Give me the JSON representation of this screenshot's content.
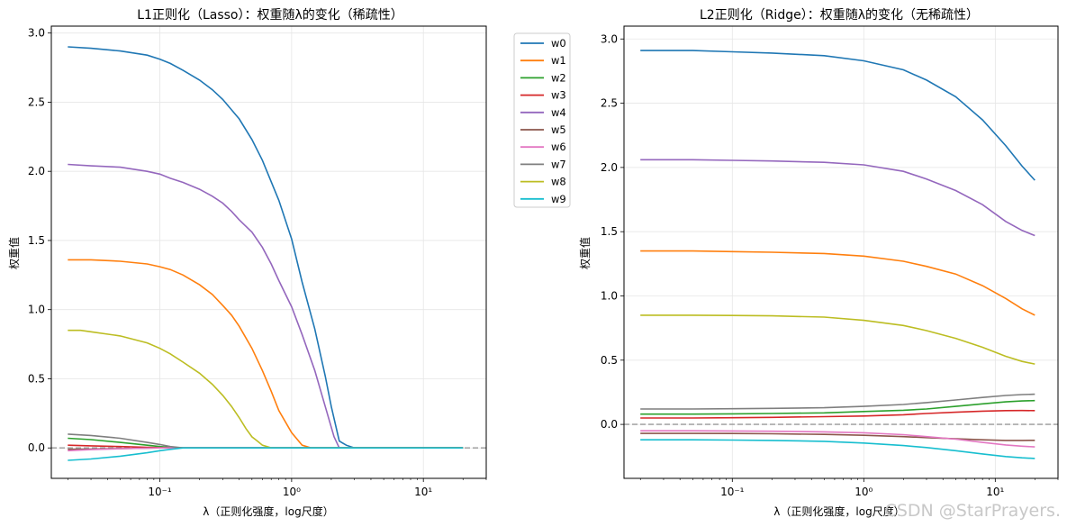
{
  "colors": [
    "#1f77b4",
    "#ff7f0e",
    "#2ca02c",
    "#d62728",
    "#9467bd",
    "#8c564b",
    "#e377c2",
    "#7f7f7f",
    "#bcbd22",
    "#17becf"
  ],
  "watermark": "CSDN @StarPrayers.",
  "chart_data": [
    {
      "type": "line",
      "title": "L1正则化（Lasso）：权重随λ的变化（稀疏性）",
      "xlabel": "λ（正则化强度，log尺度）",
      "ylabel": "权重值",
      "xscale": "log",
      "xlim": [
        0.015,
        30
      ],
      "ylim": [
        -0.22,
        3.05
      ],
      "xticks": [
        0.1,
        1,
        10
      ],
      "xtick_labels": [
        "10⁻¹",
        "10⁰",
        "10¹"
      ],
      "yticks": [
        0.0,
        0.5,
        1.0,
        1.5,
        2.0,
        2.5,
        3.0
      ],
      "ytick_labels": [
        "0.0",
        "0.5",
        "1.0",
        "1.5",
        "2.0",
        "2.5",
        "3.0"
      ],
      "grid": true,
      "hline": 0,
      "legend": "outside-right",
      "series": [
        {
          "name": "w0",
          "x": [
            0.02,
            0.03,
            0.05,
            0.08,
            0.1,
            0.12,
            0.15,
            0.2,
            0.25,
            0.3,
            0.4,
            0.5,
            0.6,
            0.8,
            1.0,
            1.2,
            1.5,
            1.8,
            2.0,
            2.3,
            2.6,
            3.0,
            5,
            10,
            20
          ],
          "y": [
            2.9,
            2.89,
            2.87,
            2.84,
            2.81,
            2.78,
            2.73,
            2.66,
            2.59,
            2.52,
            2.38,
            2.23,
            2.08,
            1.79,
            1.51,
            1.2,
            0.86,
            0.52,
            0.3,
            0.05,
            0.02,
            0.0,
            0.0,
            0.0,
            0.0
          ]
        },
        {
          "name": "w1",
          "x": [
            0.02,
            0.03,
            0.05,
            0.08,
            0.1,
            0.12,
            0.15,
            0.2,
            0.25,
            0.3,
            0.35,
            0.4,
            0.5,
            0.6,
            0.7,
            0.8,
            1.0,
            1.2,
            1.4,
            2,
            5,
            10,
            20
          ],
          "y": [
            1.36,
            1.36,
            1.35,
            1.33,
            1.31,
            1.29,
            1.25,
            1.18,
            1.11,
            1.03,
            0.96,
            0.88,
            0.72,
            0.56,
            0.41,
            0.27,
            0.11,
            0.02,
            0.0,
            0.0,
            0.0,
            0.0,
            0.0
          ]
        },
        {
          "name": "w2",
          "x": [
            0.02,
            0.03,
            0.05,
            0.08,
            0.1,
            0.12,
            0.15,
            0.2,
            1,
            10,
            20
          ],
          "y": [
            0.07,
            0.06,
            0.04,
            0.02,
            0.01,
            0.005,
            0.0,
            0.0,
            0.0,
            0.0,
            0.0
          ]
        },
        {
          "name": "w3",
          "x": [
            0.02,
            0.03,
            0.05,
            0.08,
            0.1,
            0.12,
            0.15,
            1,
            10,
            20
          ],
          "y": [
            0.02,
            0.015,
            0.01,
            0.005,
            0.002,
            0.0,
            0.0,
            0.0,
            0.0,
            0.0
          ]
        },
        {
          "name": "w4",
          "x": [
            0.02,
            0.03,
            0.05,
            0.08,
            0.1,
            0.12,
            0.15,
            0.2,
            0.25,
            0.3,
            0.35,
            0.4,
            0.5,
            0.6,
            0.7,
            0.8,
            1.0,
            1.2,
            1.5,
            1.8,
            2.1,
            2.3,
            5,
            10,
            20
          ],
          "y": [
            2.05,
            2.04,
            2.03,
            2.0,
            1.98,
            1.95,
            1.92,
            1.87,
            1.82,
            1.77,
            1.71,
            1.65,
            1.56,
            1.45,
            1.33,
            1.21,
            1.02,
            0.82,
            0.56,
            0.3,
            0.08,
            0.0,
            0.0,
            0.0,
            0.0
          ]
        },
        {
          "name": "w5",
          "x": [
            0.02,
            0.03,
            0.05,
            0.08,
            0.1,
            0.12,
            1,
            10,
            20
          ],
          "y": [
            -0.01,
            -0.008,
            -0.005,
            -0.002,
            0.0,
            0.0,
            0.0,
            0.0,
            0.0
          ]
        },
        {
          "name": "w6",
          "x": [
            0.02,
            0.03,
            0.05,
            0.08,
            0.1,
            1,
            10,
            20
          ],
          "y": [
            -0.02,
            -0.012,
            -0.006,
            -0.002,
            0.0,
            0.0,
            0.0,
            0.0
          ]
        },
        {
          "name": "w7",
          "x": [
            0.02,
            0.03,
            0.05,
            0.08,
            0.1,
            0.12,
            0.15,
            1,
            10,
            20
          ],
          "y": [
            0.1,
            0.09,
            0.07,
            0.04,
            0.025,
            0.01,
            0.0,
            0.0,
            0.0,
            0.0
          ]
        },
        {
          "name": "w8",
          "x": [
            0.02,
            0.025,
            0.03,
            0.05,
            0.08,
            0.1,
            0.12,
            0.15,
            0.2,
            0.25,
            0.3,
            0.35,
            0.4,
            0.45,
            0.5,
            0.55,
            0.6,
            0.7,
            1,
            10,
            20
          ],
          "y": [
            0.85,
            0.85,
            0.84,
            0.81,
            0.76,
            0.72,
            0.68,
            0.62,
            0.54,
            0.46,
            0.38,
            0.3,
            0.22,
            0.14,
            0.08,
            0.05,
            0.02,
            0.0,
            0.0,
            0.0,
            0.0
          ]
        },
        {
          "name": "w9",
          "x": [
            0.02,
            0.03,
            0.05,
            0.08,
            0.1,
            0.12,
            0.15,
            1,
            10,
            20
          ],
          "y": [
            -0.09,
            -0.08,
            -0.06,
            -0.035,
            -0.02,
            -0.01,
            0.0,
            0.0,
            0.0,
            0.0
          ]
        }
      ]
    },
    {
      "type": "line",
      "title": "L2正则化（Ridge）：权重随λ的变化（无稀疏性）",
      "xlabel": "λ（正则化强度，log尺度）",
      "ylabel": "权重值",
      "xscale": "log",
      "xlim": [
        0.015,
        30
      ],
      "ylim": [
        -0.42,
        3.1
      ],
      "xticks": [
        0.1,
        1,
        10
      ],
      "xtick_labels": [
        "10⁻¹",
        "10⁰",
        "10¹"
      ],
      "yticks": [
        0.0,
        0.5,
        1.0,
        1.5,
        2.0,
        2.5,
        3.0
      ],
      "ytick_labels": [
        "0.0",
        "0.5",
        "1.0",
        "1.5",
        "2.0",
        "2.5",
        "3.0"
      ],
      "grid": true,
      "hline": 0,
      "legend": "none",
      "series": [
        {
          "name": "w0",
          "x": [
            0.02,
            0.05,
            0.1,
            0.2,
            0.5,
            1,
            2,
            3,
            5,
            8,
            12,
            16,
            20
          ],
          "y": [
            2.91,
            2.91,
            2.9,
            2.89,
            2.87,
            2.83,
            2.76,
            2.68,
            2.55,
            2.37,
            2.17,
            2.01,
            1.9
          ]
        },
        {
          "name": "w1",
          "x": [
            0.02,
            0.05,
            0.1,
            0.2,
            0.5,
            1,
            2,
            3,
            5,
            8,
            12,
            16,
            20
          ],
          "y": [
            1.35,
            1.35,
            1.345,
            1.34,
            1.33,
            1.31,
            1.27,
            1.23,
            1.17,
            1.08,
            0.98,
            0.9,
            0.85
          ]
        },
        {
          "name": "w2",
          "x": [
            0.02,
            0.05,
            0.1,
            0.2,
            0.5,
            1,
            2,
            3,
            5,
            8,
            12,
            16,
            20
          ],
          "y": [
            0.08,
            0.08,
            0.082,
            0.085,
            0.09,
            0.1,
            0.11,
            0.12,
            0.14,
            0.16,
            0.175,
            0.182,
            0.185
          ]
        },
        {
          "name": "w3",
          "x": [
            0.02,
            0.05,
            0.1,
            0.2,
            0.5,
            1,
            2,
            3,
            5,
            8,
            12,
            16,
            20
          ],
          "y": [
            0.05,
            0.05,
            0.052,
            0.055,
            0.06,
            0.065,
            0.075,
            0.085,
            0.095,
            0.103,
            0.107,
            0.108,
            0.107
          ]
        },
        {
          "name": "w4",
          "x": [
            0.02,
            0.05,
            0.1,
            0.2,
            0.5,
            1,
            2,
            3,
            5,
            8,
            12,
            16,
            20
          ],
          "y": [
            2.06,
            2.06,
            2.055,
            2.05,
            2.04,
            2.02,
            1.97,
            1.91,
            1.82,
            1.71,
            1.58,
            1.51,
            1.47
          ]
        },
        {
          "name": "w5",
          "x": [
            0.02,
            0.05,
            0.1,
            0.2,
            0.5,
            1,
            2,
            3,
            5,
            8,
            12,
            16,
            20
          ],
          "y": [
            -0.07,
            -0.07,
            -0.071,
            -0.073,
            -0.078,
            -0.085,
            -0.095,
            -0.103,
            -0.112,
            -0.12,
            -0.125,
            -0.125,
            -0.124
          ]
        },
        {
          "name": "w6",
          "x": [
            0.02,
            0.05,
            0.1,
            0.2,
            0.5,
            1,
            2,
            3,
            5,
            8,
            12,
            16,
            20
          ],
          "y": [
            -0.05,
            -0.05,
            -0.051,
            -0.053,
            -0.058,
            -0.065,
            -0.08,
            -0.095,
            -0.115,
            -0.14,
            -0.16,
            -0.17,
            -0.175
          ]
        },
        {
          "name": "w7",
          "x": [
            0.02,
            0.05,
            0.1,
            0.2,
            0.5,
            1,
            2,
            3,
            5,
            8,
            12,
            16,
            20
          ],
          "y": [
            0.12,
            0.12,
            0.122,
            0.125,
            0.13,
            0.14,
            0.155,
            0.17,
            0.19,
            0.21,
            0.225,
            0.232,
            0.235
          ]
        },
        {
          "name": "w8",
          "x": [
            0.02,
            0.05,
            0.1,
            0.2,
            0.5,
            1,
            2,
            3,
            5,
            8,
            12,
            16,
            20
          ],
          "y": [
            0.85,
            0.85,
            0.848,
            0.845,
            0.835,
            0.81,
            0.77,
            0.73,
            0.67,
            0.6,
            0.53,
            0.49,
            0.47
          ]
        },
        {
          "name": "w9",
          "x": [
            0.02,
            0.05,
            0.1,
            0.2,
            0.5,
            1,
            2,
            3,
            5,
            8,
            12,
            16,
            20
          ],
          "y": [
            -0.12,
            -0.12,
            -0.122,
            -0.125,
            -0.132,
            -0.145,
            -0.165,
            -0.18,
            -0.205,
            -0.23,
            -0.25,
            -0.26,
            -0.265
          ]
        }
      ]
    }
  ]
}
